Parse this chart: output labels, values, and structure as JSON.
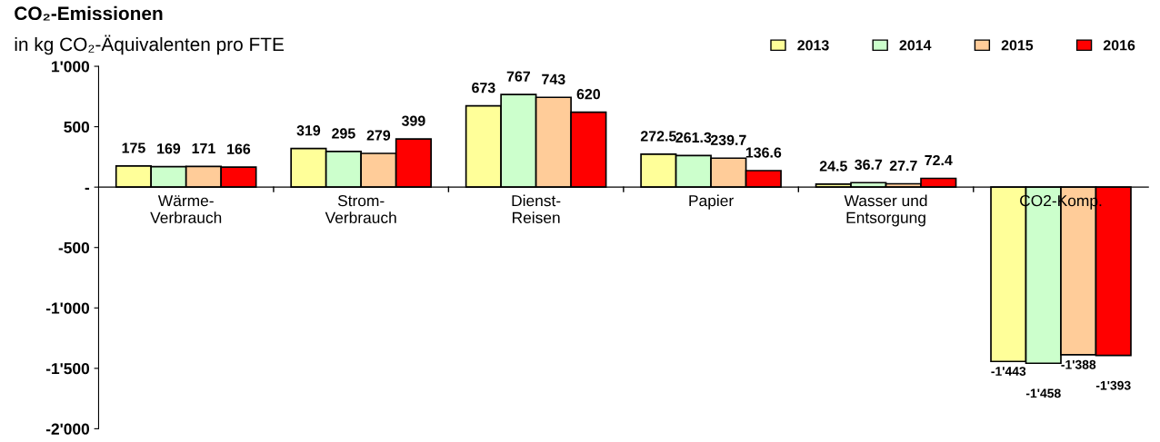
{
  "chart_data": {
    "type": "bar",
    "title": "CO₂-Emissionen",
    "subtitle": "in kg CO₂-Äquivalenten pro FTE",
    "categories": [
      "Wärme-\nVerbrauch",
      "Strom-\nVerbrauch",
      "Dienst-\nReisen",
      "Papier",
      "Wasser und\nEntsorgung",
      "CO2-Komp."
    ],
    "series": [
      {
        "name": "2013",
        "color": "#ffff99",
        "values": [
          175,
          319,
          673,
          272.5,
          24.5,
          -1443
        ],
        "value_labels": [
          "175",
          "319",
          "673",
          "272.5",
          "24.5",
          "-1'443"
        ]
      },
      {
        "name": "2014",
        "color": "#ccffcc",
        "values": [
          169,
          295,
          767,
          261.3,
          36.7,
          -1458
        ],
        "value_labels": [
          "169",
          "295",
          "767",
          "261.3",
          "36.7",
          "-1'458"
        ]
      },
      {
        "name": "2015",
        "color": "#ffcc99",
        "values": [
          171,
          279,
          743,
          239.7,
          27.7,
          -1388
        ],
        "value_labels": [
          "171",
          "279",
          "743",
          "239.7",
          "27.7",
          "-1'388"
        ]
      },
      {
        "name": "2016",
        "color": "#ff0000",
        "values": [
          166,
          399,
          620,
          136.6,
          72.4,
          -1393
        ],
        "value_labels": [
          "166",
          "399",
          "620",
          "136.6",
          "72.4",
          "-1'393"
        ]
      }
    ],
    "ylim": [
      -2000,
      1000
    ],
    "yticks": [
      {
        "value": 1000,
        "label": "1'000"
      },
      500,
      {
        "value": 0,
        "label": "-"
      },
      -500,
      {
        "value": -1000,
        "label": "-1'000"
      },
      {
        "value": -1500,
        "label": "-1'500"
      },
      {
        "value": -2000,
        "label": "-2'000"
      }
    ],
    "grid": false,
    "legend": "top right"
  }
}
